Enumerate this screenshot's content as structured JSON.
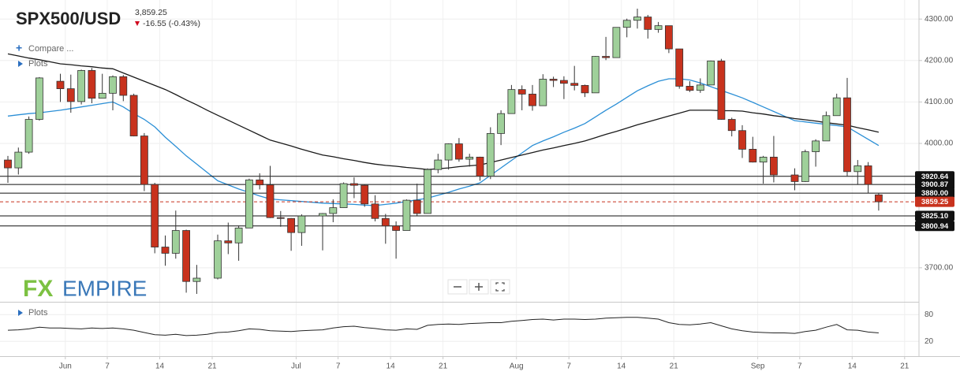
{
  "chart_data": {
    "type": "candlestick",
    "title": "SPX500/USD",
    "price": "3,859.25",
    "change": "-16.55 (-0.43%)",
    "menu": [
      "Compare ...",
      "Plots"
    ],
    "logo": [
      "FX",
      "EMPIRE"
    ],
    "categories": [
      null,
      null,
      null,
      null,
      null,
      null,
      "Jun",
      null,
      null,
      null,
      "7",
      null,
      null,
      null,
      null,
      "14",
      null,
      null,
      null,
      null,
      "21",
      null,
      null,
      null,
      null,
      null,
      null,
      null,
      "Jul",
      null,
      null,
      null,
      "7",
      null,
      null,
      null,
      null,
      "14",
      null,
      null,
      null,
      null,
      "21",
      null,
      null,
      null,
      null,
      null,
      null,
      "Aug",
      null,
      null,
      null,
      null,
      "7",
      null,
      null,
      null,
      null,
      "14",
      null,
      null,
      null,
      null,
      "21",
      null,
      null,
      null,
      null,
      null,
      null,
      null,
      "Sep",
      null,
      null,
      null,
      "7",
      null,
      null,
      null,
      null,
      "14",
      null,
      null,
      null,
      null,
      "21"
    ],
    "open": [
      3960,
      3941,
      3979,
      4058,
      null,
      4150,
      4132,
      4101,
      4176,
      4109,
      4121,
      4161,
      4116,
      4018,
      3901,
      3750,
      3735,
      3790,
      3667,
      null,
      3675,
      3765,
      3760,
      3796,
      3912,
      3900,
      3821,
      3819,
      3785,
      null,
      3825,
      3831,
      3845,
      3903,
      3899,
      3854,
      3819,
      3801,
      3790,
      3863,
      3831,
      3937,
      3960,
      3999,
      3962,
      3967,
      3921,
      4024,
      4072,
      4130,
      4119,
      4091,
      4155,
      4152,
      4145,
      4140,
      4122,
      4210,
      4207,
      4280,
      4297,
      4305,
      4275,
      4284,
      4228,
      4138,
      4128,
      4141,
      4199,
      4058,
      4031,
      3986,
      3955,
      3967,
      null,
      3924,
      3908,
      3980,
      4006,
      4067,
      4110,
      3932,
      3946,
      3876,
      null,
      null,
      null
    ],
    "high": [
      3970,
      3990,
      4065,
      4160,
      null,
      4168,
      4166,
      4178,
      4182,
      4168,
      4164,
      4165,
      4120,
      4025,
      3905,
      3778,
      3838,
      3792,
      3707,
      null,
      3780,
      3809,
      3802,
      3915,
      3928,
      3946,
      3837,
      3820,
      3829,
      null,
      3832,
      3865,
      3906,
      3918,
      3900,
      3875,
      3830,
      3812,
      3865,
      3903,
      3940,
      3975,
      4000,
      4013,
      3975,
      3968,
      4039,
      4080,
      4141,
      4140,
      4141,
      4167,
      4161,
      4162,
      4187,
      4142,
      4211,
      4257,
      4280,
      4301,
      4325,
      4310,
      4293,
      4284,
      4228,
      4150,
      4157,
      4200,
      4204,
      4062,
      4044,
      4016,
      3970,
      4018,
      null,
      3940,
      3985,
      4010,
      4077,
      4120,
      4158,
      3960,
      3955,
      3880,
      null,
      null,
      null
    ],
    "low": [
      3905,
      3925,
      3975,
      4055,
      null,
      4100,
      4074,
      4094,
      4097,
      4109,
      4080,
      4102,
      4017,
      3885,
      3735,
      3705,
      3722,
      3640,
      3637,
      null,
      3672,
      3733,
      3717,
      3796,
      3889,
      3820,
      3799,
      3741,
      3753,
      null,
      3742,
      3810,
      3845,
      3868,
      3847,
      3812,
      3758,
      3722,
      3790,
      3826,
      3831,
      3928,
      3937,
      3956,
      3944,
      3910,
      3914,
      3996,
      4072,
      4080,
      4079,
      4091,
      4136,
      4107,
      4128,
      4112,
      4122,
      4201,
      4207,
      4256,
      4277,
      4253,
      4267,
      4218,
      4132,
      4124,
      4122,
      4141,
      4057,
      4017,
      3965,
      3954,
      3903,
      3906,
      null,
      3887,
      3907,
      3944,
      4006,
      4067,
      3920,
      3900,
      3880,
      3838,
      null,
      null,
      null
    ],
    "close": [
      3941,
      3979,
      4058,
      4158,
      null,
      4132,
      4101,
      4176,
      4109,
      4121,
      4161,
      4116,
      4018,
      3901,
      3750,
      3735,
      3790,
      3667,
      3675,
      null,
      3765,
      3760,
      3796,
      3912,
      3900,
      3821,
      3819,
      3785,
      3825,
      null,
      3831,
      3845,
      3903,
      3899,
      3854,
      3819,
      3801,
      3790,
      3863,
      3831,
      3937,
      3960,
      3999,
      3962,
      3967,
      3921,
      4024,
      4072,
      4130,
      4119,
      4091,
      4155,
      4152,
      4145,
      4140,
      4122,
      4210,
      4207,
      4280,
      4297,
      4305,
      4275,
      4284,
      4228,
      4138,
      4128,
      4141,
      4199,
      4058,
      4031,
      3986,
      3955,
      3967,
      3924,
      null,
      3908,
      3980,
      4006,
      4067,
      4110,
      3932,
      3946,
      3901,
      3859.25,
      null,
      null,
      null
    ],
    "up_color": "#9fd09a",
    "down_color": "#c8321d",
    "overlays": [
      {
        "color": "#2b8fd6",
        "values": [
          4066,
          4069,
          4072,
          4074,
          4077,
          4080,
          4084,
          4088,
          4092,
          4096,
          4100,
          4088,
          4072,
          4058,
          4040,
          4015,
          3993,
          3970,
          3950,
          3930,
          3910,
          3900,
          3890,
          3882,
          3873,
          3866,
          3864,
          3862,
          3860,
          3858,
          3856,
          3855,
          3854,
          3853,
          3851,
          3850,
          3853,
          3856,
          3860,
          3864,
          3868,
          3875,
          3882,
          3890,
          3897,
          3905,
          3923,
          3941,
          3959,
          3977,
          3995,
          4006,
          4016,
          4027,
          4037,
          4048,
          4064,
          4080,
          4095,
          4111,
          4127,
          4139,
          4150,
          4156,
          4156,
          4153,
          4146,
          4137,
          4128,
          4119,
          4110,
          4099,
          4088,
          4077,
          4066,
          4055,
          4052,
          4049,
          4046,
          4043,
          4040,
          4025,
          4010,
          3995,
          null,
          null,
          null
        ]
      },
      {
        "color": "#1a1a1a",
        "values": [
          4216,
          4211,
          4206,
          4202,
          4197,
          4192,
          4190,
          4187,
          4185,
          4182,
          4180,
          4170,
          4160,
          4150,
          4140,
          4130,
          4118,
          4105,
          4093,
          4080,
          4068,
          4056,
          4044,
          4032,
          4020,
          4008,
          4001,
          3994,
          3986,
          3979,
          3972,
          3968,
          3963,
          3959,
          3954,
          3950,
          3947,
          3945,
          3942,
          3940,
          3937,
          3939,
          3941,
          3944,
          3946,
          3948,
          3954,
          3960,
          3966,
          3972,
          3978,
          3984,
          3989,
          3995,
          4000,
          4006,
          4014,
          4022,
          4029,
          4037,
          4045,
          4052,
          4059,
          4066,
          4073,
          4080,
          4080,
          4080,
          4079,
          4079,
          4078,
          4074,
          4071,
          4067,
          4064,
          4060,
          4057,
          4054,
          4050,
          4047,
          4044,
          4038,
          4033,
          4027,
          null,
          null,
          null
        ]
      }
    ],
    "ylim": [
      3618,
      4346
    ],
    "yticks": [
      {
        "value": 3700,
        "label": "3700.00"
      },
      {
        "value": 4000,
        "label": "4000.00"
      },
      {
        "value": 4100,
        "label": "4100.00"
      },
      {
        "value": 4200,
        "label": "4200.00"
      },
      {
        "value": 4300,
        "label": "4300.00"
      }
    ],
    "grid": true,
    "levels": [
      3920.64,
      3900.87,
      {
        "value": 3880,
        "label": "3880.00"
      },
      {
        "value": 3825.1,
        "label": "3825.10"
      },
      3800.94
    ],
    "level_color": "#111111",
    "current": 3859.25,
    "current_color": "#c8321d",
    "indicator": {
      "title": "Plots",
      "color": "#222222",
      "ylim": [
        -13,
        107
      ],
      "yticks": [
        20,
        80
      ],
      "values": [
        45,
        46,
        48,
        52,
        50,
        50,
        49,
        48,
        50,
        49,
        50,
        48,
        45,
        40,
        35,
        34,
        36,
        33,
        34,
        36,
        40,
        41,
        44,
        48,
        47,
        44,
        43,
        42,
        44,
        45,
        46,
        50,
        53,
        54,
        51,
        49,
        46,
        45,
        48,
        47,
        56,
        58,
        59,
        58,
        60,
        61,
        62,
        62,
        65,
        67,
        69,
        70,
        68,
        70,
        70,
        69,
        70,
        72,
        73,
        74,
        74,
        72,
        70,
        62,
        58,
        57,
        59,
        62,
        55,
        48,
        44,
        41,
        40,
        39,
        39,
        38,
        42,
        45,
        52,
        58,
        46,
        45,
        41,
        39,
        null,
        null,
        null
      ]
    }
  }
}
